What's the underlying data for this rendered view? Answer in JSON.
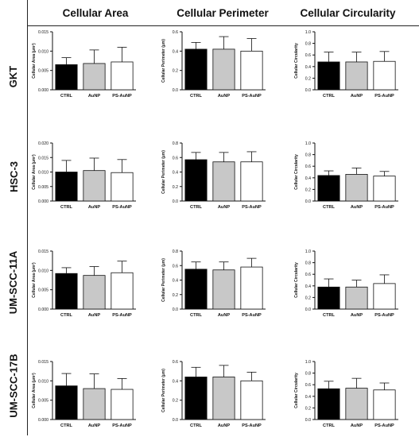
{
  "columns": [
    "Cellular Area",
    "Cellular Perimeter",
    "Cellular Circularity"
  ],
  "rows": [
    "GKT",
    "HSC-3",
    "UM-SCC-11A",
    "UM-SCC-17B"
  ],
  "colors": {
    "CTRL": "#000000",
    "AuNP": "#c8c8c8",
    "PS-AuNP": "#ffffff"
  },
  "chart_data": [
    {
      "id": "gkt-area",
      "type": "bar",
      "row": "GKT",
      "column": "Cellular Area",
      "categories": [
        "CTRL",
        "AuNP",
        "PS-AuNP"
      ],
      "values": [
        0.0065,
        0.0068,
        0.0072
      ],
      "errors": [
        0.0018,
        0.0035,
        0.0038
      ],
      "ylabel": "Cellular Area (µm²)",
      "ylim": [
        0,
        0.015
      ],
      "yticks": [
        "0.000",
        "0.005",
        "0.010",
        "0.015"
      ]
    },
    {
      "id": "gkt-perimeter",
      "type": "bar",
      "row": "GKT",
      "column": "Cellular Perimeter",
      "categories": [
        "CTRL",
        "AuNP",
        "PS-AuNP"
      ],
      "values": [
        0.42,
        0.42,
        0.4
      ],
      "errors": [
        0.07,
        0.13,
        0.13
      ],
      "ylabel": "Cellular Perimeter (µm)",
      "ylim": [
        0,
        0.6
      ],
      "yticks": [
        "0.0",
        "0.2",
        "0.4",
        "0.6"
      ]
    },
    {
      "id": "gkt-circularity",
      "type": "bar",
      "row": "GKT",
      "column": "Cellular Circularity",
      "categories": [
        "CTRL",
        "AuNP",
        "PS-AuNP"
      ],
      "values": [
        0.48,
        0.48,
        0.49
      ],
      "errors": [
        0.17,
        0.17,
        0.17
      ],
      "ylabel": "Cellular Circularity",
      "ylim": [
        0,
        1.0
      ],
      "yticks": [
        "0.0",
        "0.2",
        "0.4",
        "0.6",
        "0.8",
        "1.0"
      ]
    },
    {
      "id": "hsc3-area",
      "type": "bar",
      "row": "HSC-3",
      "column": "Cellular Area",
      "categories": [
        "CTRL",
        "AuNP",
        "PS-AuNP"
      ],
      "values": [
        0.01,
        0.0105,
        0.0098
      ],
      "errors": [
        0.004,
        0.0043,
        0.0045
      ],
      "ylabel": "Cellular Area (µm²)",
      "ylim": [
        0,
        0.02
      ],
      "yticks": [
        "0.000",
        "0.005",
        "0.010",
        "0.015",
        "0.020"
      ]
    },
    {
      "id": "hsc3-perimeter",
      "type": "bar",
      "row": "HSC-3",
      "column": "Cellular Perimeter",
      "categories": [
        "CTRL",
        "AuNP",
        "PS-AuNP"
      ],
      "values": [
        0.57,
        0.54,
        0.54
      ],
      "errors": [
        0.1,
        0.13,
        0.14
      ],
      "ylabel": "Cellular Perimeter (µm)",
      "ylim": [
        0,
        0.8
      ],
      "yticks": [
        "0.0",
        "0.2",
        "0.4",
        "0.6",
        "0.8"
      ]
    },
    {
      "id": "hsc3-circularity",
      "type": "bar",
      "row": "HSC-3",
      "column": "Cellular Circularity",
      "categories": [
        "CTRL",
        "AuNP",
        "PS-AuNP"
      ],
      "values": [
        0.44,
        0.46,
        0.43
      ],
      "errors": [
        0.08,
        0.11,
        0.08
      ],
      "ylabel": "Cellular Circularity",
      "ylim": [
        0,
        1.0
      ],
      "yticks": [
        "0.0",
        "0.2",
        "0.4",
        "0.6",
        "0.8",
        "1.0"
      ]
    },
    {
      "id": "umscc11a-area",
      "type": "bar",
      "row": "UM-SCC-11A",
      "column": "Cellular Area",
      "categories": [
        "CTRL",
        "AuNP",
        "PS-AuNP"
      ],
      "values": [
        0.0092,
        0.0087,
        0.0094
      ],
      "errors": [
        0.0015,
        0.0023,
        0.003
      ],
      "ylabel": "Cellular Area (µm²)",
      "ylim": [
        0,
        0.015
      ],
      "yticks": [
        "0.000",
        "0.005",
        "0.010",
        "0.015"
      ]
    },
    {
      "id": "umscc11a-perimeter",
      "type": "bar",
      "row": "UM-SCC-11A",
      "column": "Cellular Perimeter",
      "categories": [
        "CTRL",
        "AuNP",
        "PS-AuNP"
      ],
      "values": [
        0.55,
        0.54,
        0.58
      ],
      "errors": [
        0.1,
        0.11,
        0.12
      ],
      "ylabel": "Cellular Perimeter (µm)",
      "ylim": [
        0,
        0.8
      ],
      "yticks": [
        "0.0",
        "0.2",
        "0.4",
        "0.6",
        "0.8"
      ]
    },
    {
      "id": "umscc11a-circularity",
      "type": "bar",
      "row": "UM-SCC-11A",
      "column": "Cellular Circularity",
      "categories": [
        "CTRL",
        "AuNP",
        "PS-AuNP"
      ],
      "values": [
        0.38,
        0.38,
        0.44
      ],
      "errors": [
        0.14,
        0.12,
        0.15
      ],
      "ylabel": "Cellular Circularity",
      "ylim": [
        0,
        1.0
      ],
      "yticks": [
        "0.0",
        "0.2",
        "0.4",
        "0.6",
        "0.8",
        "1.0"
      ]
    },
    {
      "id": "umscc17b-area",
      "type": "bar",
      "row": "UM-SCC-17B",
      "column": "Cellular Area",
      "categories": [
        "CTRL",
        "AuNP",
        "PS-AuNP"
      ],
      "values": [
        0.0087,
        0.008,
        0.0078
      ],
      "errors": [
        0.0032,
        0.0038,
        0.0028
      ],
      "ylabel": "Cellular Area (µm²)",
      "ylim": [
        0,
        0.015
      ],
      "yticks": [
        "0.000",
        "0.005",
        "0.010",
        "0.015"
      ]
    },
    {
      "id": "umscc17b-perimeter",
      "type": "bar",
      "row": "UM-SCC-17B",
      "column": "Cellular Perimeter",
      "categories": [
        "CTRL",
        "AuNP",
        "PS-AuNP"
      ],
      "values": [
        0.44,
        0.44,
        0.4
      ],
      "errors": [
        0.1,
        0.12,
        0.09
      ],
      "ylabel": "Cellular Perimeter (µm)",
      "ylim": [
        0,
        0.6
      ],
      "yticks": [
        "0.0",
        "0.2",
        "0.4",
        "0.6"
      ]
    },
    {
      "id": "umscc17b-circularity",
      "type": "bar",
      "row": "UM-SCC-17B",
      "column": "Cellular Circularity",
      "categories": [
        "CTRL",
        "AuNP",
        "PS-AuNP"
      ],
      "values": [
        0.53,
        0.54,
        0.51
      ],
      "errors": [
        0.13,
        0.17,
        0.12
      ],
      "ylabel": "Cellular Circularity",
      "ylim": [
        0,
        1.0
      ],
      "yticks": [
        "0.0",
        "0.2",
        "0.4",
        "0.6",
        "0.8",
        "1.0"
      ]
    }
  ]
}
